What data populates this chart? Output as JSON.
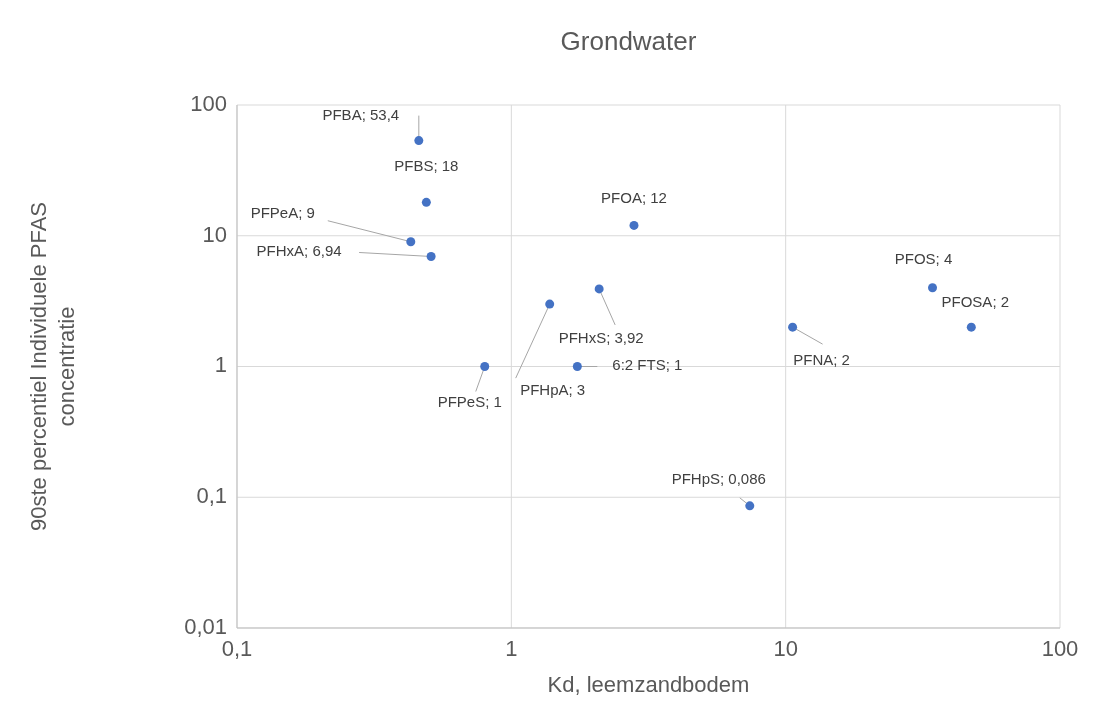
{
  "chart_data": {
    "type": "scatter",
    "title": "Grondwater",
    "xlabel": "Kd, leemzandbodem",
    "ylabel": "90ste percentiel Individuele PFAS concentratie",
    "log": "xy",
    "grid": true,
    "marker": "circle",
    "xlim": [
      0.1,
      100
    ],
    "xticks": [
      {
        "value": 0.1,
        "label": "0,1"
      },
      1,
      10,
      100
    ],
    "ylim": [
      0.01,
      100
    ],
    "yticks": [
      {
        "value": 0.01,
        "label": "0,01"
      },
      {
        "value": 0.1,
        "label": "0,1"
      },
      1,
      10,
      100
    ],
    "series": [
      {
        "color": "#4472c4",
        "x": [
          0.46,
          0.49,
          0.43,
          0.51,
          2.8,
          2.09,
          1.38,
          0.8,
          1.74,
          10.6,
          34.3,
          47.5,
          7.4
        ],
        "values": [
          53.4,
          18,
          9,
          6.94,
          12,
          3.92,
          3,
          1,
          1,
          2,
          4,
          2,
          0.086
        ],
        "value_labels": [
          "PFBA; 53,4",
          "PFBS; 18",
          "PFPeA; 9",
          "PFHxA; 6,94",
          "PFOA; 12",
          "PFHxS; 3,92",
          "PFHpA; 3",
          "PFPeS; 1",
          "6:2 FTS; 1",
          "PFNA; 2",
          "PFOS; 4",
          "PFOSA; 2",
          "PFHpS; 0,086"
        ]
      }
    ]
  }
}
